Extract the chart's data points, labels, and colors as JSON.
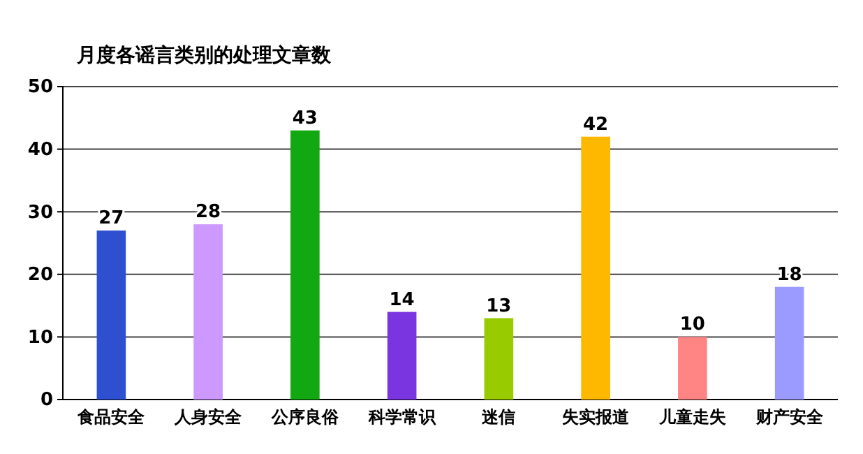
{
  "chart_data": {
    "type": "bar",
    "title": "月度各谣言类别的处理文章数",
    "categories": [
      "食品安全",
      "人身安全",
      "公序良俗",
      "科学常识",
      "迷信",
      "失实报道",
      "儿童走失",
      "财产安全"
    ],
    "values": [
      27,
      28,
      43,
      14,
      13,
      42,
      10,
      18
    ],
    "colors": [
      "#2e4fd0",
      "#cc99ff",
      "#12a812",
      "#7a35e0",
      "#99cc00",
      "#ffb800",
      "#ff8585",
      "#9b9bff"
    ],
    "ylim": [
      0,
      50
    ],
    "yticks": [
      0,
      10,
      20,
      30,
      40,
      50
    ],
    "grid": "y",
    "data_labels": true
  }
}
